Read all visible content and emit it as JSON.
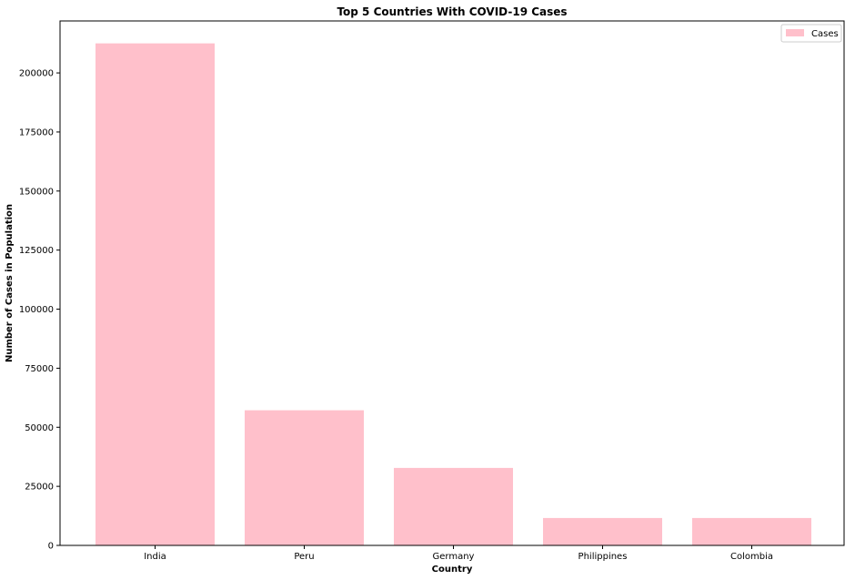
{
  "chart_data": {
    "type": "bar",
    "title": "Top 5 Countries With COVID-19 Cases",
    "xlabel": "Country",
    "ylabel": "Number of Cases in Population",
    "categories": [
      "India",
      "Peru",
      "Germany",
      "Philippines",
      "Colombia"
    ],
    "series": [
      {
        "name": "Cases",
        "values": [
          212500,
          57200,
          32800,
          11600,
          11600
        ]
      }
    ],
    "ylim": [
      0,
      222000
    ],
    "yticks": [
      0,
      25000,
      50000,
      75000,
      100000,
      125000,
      150000,
      175000,
      200000
    ],
    "ytick_labels": [
      "0",
      "25000",
      "50000",
      "75000",
      "100000",
      "125000",
      "150000",
      "175000",
      "200000"
    ],
    "grid": false,
    "legend": "top-right",
    "colors": {
      "bar": "#ffc0cb",
      "axis": "#000000"
    }
  }
}
